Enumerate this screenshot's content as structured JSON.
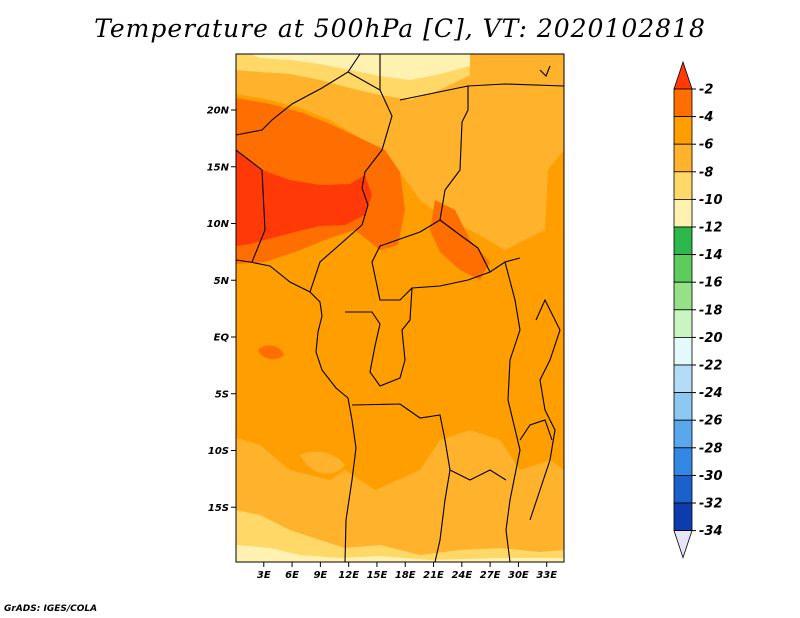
{
  "title": "Temperature at 500hPa [C], VT: 2020102818",
  "credit": "GrADS: IGES/COLA",
  "map": {
    "variable": "Temperature at 500hPa",
    "units": "C",
    "valid_time": "2020102818",
    "lat_ticks": [
      "20N",
      "15N",
      "10N",
      "5N",
      "EQ",
      "5S",
      "10S",
      "15S"
    ],
    "lat_values": [
      20,
      15,
      10,
      5,
      0,
      -5,
      -10,
      -15
    ],
    "lon_ticks": [
      "3E",
      "6E",
      "9E",
      "12E",
      "15E",
      "18E",
      "21E",
      "24E",
      "27E",
      "30E",
      "33E"
    ],
    "lon_values": [
      3,
      6,
      9,
      12,
      15,
      18,
      21,
      24,
      27,
      30,
      33
    ]
  },
  "colorbar": {
    "labels": [
      "-2",
      "-4",
      "-6",
      "-8",
      "-10",
      "-12",
      "-14",
      "-16",
      "-18",
      "-20",
      "-22",
      "-24",
      "-26",
      "-28",
      "-30",
      "-32",
      "-34"
    ],
    "colors": [
      "#ff3a08",
      "#ff6e00",
      "#ff9e00",
      "#ffb22c",
      "#ffd868",
      "#fff2b0",
      "#2db84c",
      "#5ccd5c",
      "#96e088",
      "#c8f5c0",
      "#e4fafa",
      "#b4dcf6",
      "#8cc8f2",
      "#5aa8ec",
      "#3288e2",
      "#1c60cc",
      "#0c3cae",
      "#041468"
    ]
  }
}
